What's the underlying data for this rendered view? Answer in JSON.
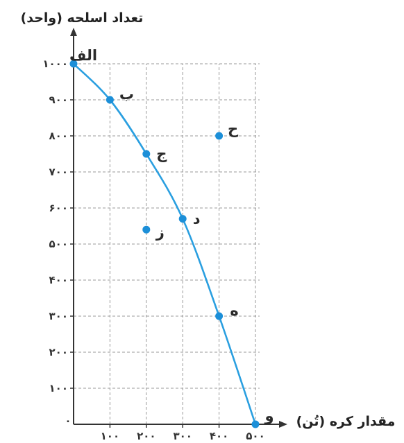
{
  "chart_data": {
    "type": "line",
    "xlabel": "مقدار کره (تُن)",
    "ylabel": "تعداد اسلحه (واحد)",
    "x_ticks": [
      "۱۰۰",
      "۲۰۰",
      "۳۰۰",
      "۴۰۰",
      "۵۰۰"
    ],
    "y_ticks": [
      "۱۰۰",
      "۲۰۰",
      "۳۰۰",
      "۴۰۰",
      "۵۰۰",
      "۶۰۰",
      "۷۰۰",
      "۸۰۰",
      "۹۰۰",
      "۱۰۰۰"
    ],
    "origin_label": "٠",
    "xlim": [
      0,
      500
    ],
    "ylim": [
      0,
      1000
    ],
    "grid": true,
    "grid_style": "dashed",
    "curve_color": "#2a9fe0",
    "point_color": "#1c8fd8",
    "series": [
      {
        "points": [
          {
            "label": "الف",
            "x": 0,
            "y": 1000
          },
          {
            "label": "ب",
            "x": 100,
            "y": 900
          },
          {
            "label": "ج",
            "x": 200,
            "y": 750
          },
          {
            "label": "د",
            "x": 300,
            "y": 570
          },
          {
            "label": "ه",
            "x": 400,
            "y": 300
          },
          {
            "label": "و",
            "x": 500,
            "y": 0
          }
        ]
      }
    ],
    "extra_points": [
      {
        "label": "ز",
        "x": 200,
        "y": 540
      },
      {
        "label": "ح",
        "x": 400,
        "y": 800
      }
    ]
  }
}
